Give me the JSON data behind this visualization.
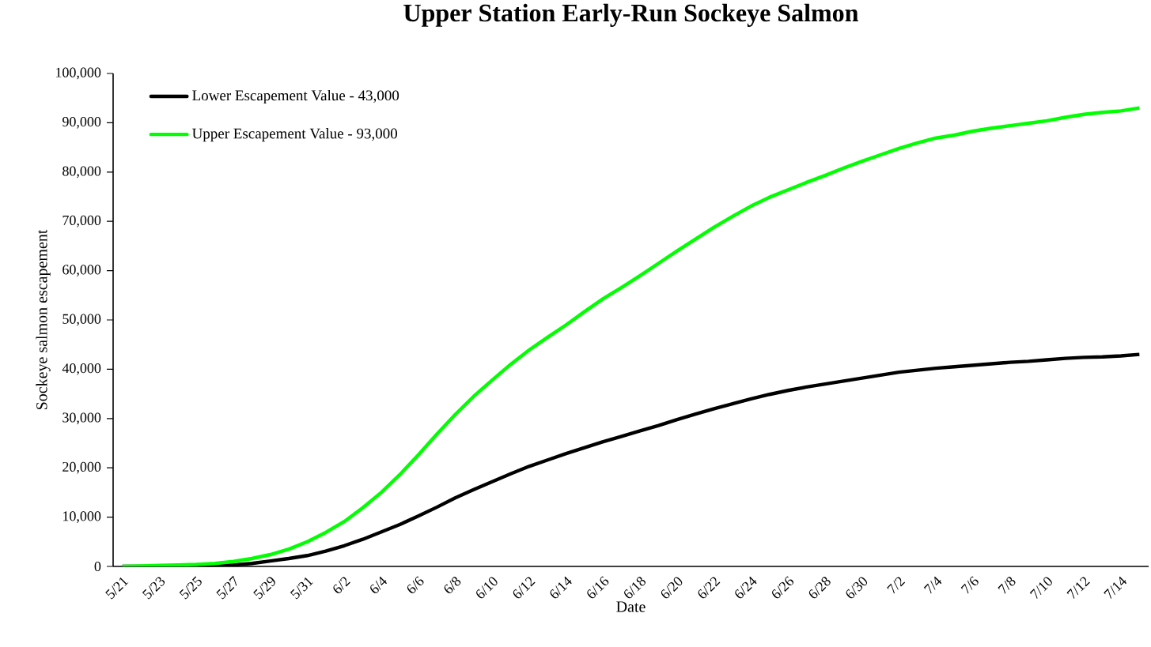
{
  "chart_data": {
    "type": "line",
    "title": "Upper Station Early-Run Sockeye Salmon",
    "xlabel": "Date",
    "ylabel": "Sockeye salmon escapement",
    "categories": [
      "5/21",
      null,
      "5/23",
      null,
      "5/25",
      null,
      "5/27",
      null,
      "5/29",
      null,
      "5/31",
      null,
      "6/2",
      null,
      "6/4",
      null,
      "6/6",
      null,
      "6/8",
      null,
      "6/10",
      null,
      "6/12",
      null,
      "6/14",
      null,
      "6/16",
      null,
      "6/18",
      null,
      "6/20",
      null,
      "6/22",
      null,
      "6/24",
      null,
      "6/26",
      null,
      "6/28",
      null,
      "6/30",
      null,
      "7/2",
      null,
      "7/4",
      null,
      "7/6",
      null,
      "7/8",
      null,
      "7/10",
      null,
      "7/12",
      null,
      "7/14",
      null
    ],
    "series": [
      {
        "name": "Lower Escapement Value - 43,000",
        "color": "#000000",
        "values": [
          0,
          0,
          0,
          0,
          0,
          100,
          300,
          600,
          1100,
          1600,
          2200,
          3100,
          4200,
          5500,
          7000,
          8500,
          10200,
          12000,
          13900,
          15600,
          17200,
          18800,
          20300,
          21600,
          22900,
          24100,
          25300,
          26400,
          27500,
          28600,
          29800,
          30900,
          32000,
          33000,
          34000,
          34900,
          35700,
          36400,
          37000,
          37600,
          38200,
          38800,
          39400,
          39800,
          40200,
          40500,
          40800,
          41100,
          41400,
          41600,
          41900,
          42200,
          42400,
          42500,
          42700,
          43000
        ]
      },
      {
        "name": "Upper Escapement Value - 93,000",
        "color": "#00ff00",
        "values": [
          0,
          100,
          200,
          300,
          400,
          600,
          1000,
          1600,
          2400,
          3500,
          5000,
          6900,
          9100,
          11900,
          15000,
          18600,
          22600,
          26800,
          30800,
          34500,
          37800,
          41000,
          43900,
          46500,
          49000,
          51700,
          54300,
          56600,
          59000,
          61500,
          64000,
          66400,
          68800,
          71000,
          73100,
          74900,
          76400,
          77900,
          79300,
          80800,
          82200,
          83500,
          84800,
          85900,
          86900,
          87500,
          88300,
          88900,
          89400,
          89900,
          90400,
          91100,
          91700,
          92100,
          92400,
          93000
        ]
      }
    ],
    "ylim": [
      0,
      100000
    ],
    "yticks": [
      {
        "value": 0,
        "label": "0"
      },
      {
        "value": 10000,
        "label": "10,000"
      },
      {
        "value": 20000,
        "label": "20,000"
      },
      {
        "value": 30000,
        "label": "30,000"
      },
      {
        "value": 40000,
        "label": "40,000"
      },
      {
        "value": 50000,
        "label": "50,000"
      },
      {
        "value": 60000,
        "label": "60,000"
      },
      {
        "value": 70000,
        "label": "70,000"
      },
      {
        "value": 80000,
        "label": "80,000"
      },
      {
        "value": 90000,
        "label": "90,000"
      },
      {
        "value": 100000,
        "label": "100,000"
      }
    ],
    "grid": false,
    "legend": "top left",
    "marker": "none",
    "line_style": "solid"
  }
}
